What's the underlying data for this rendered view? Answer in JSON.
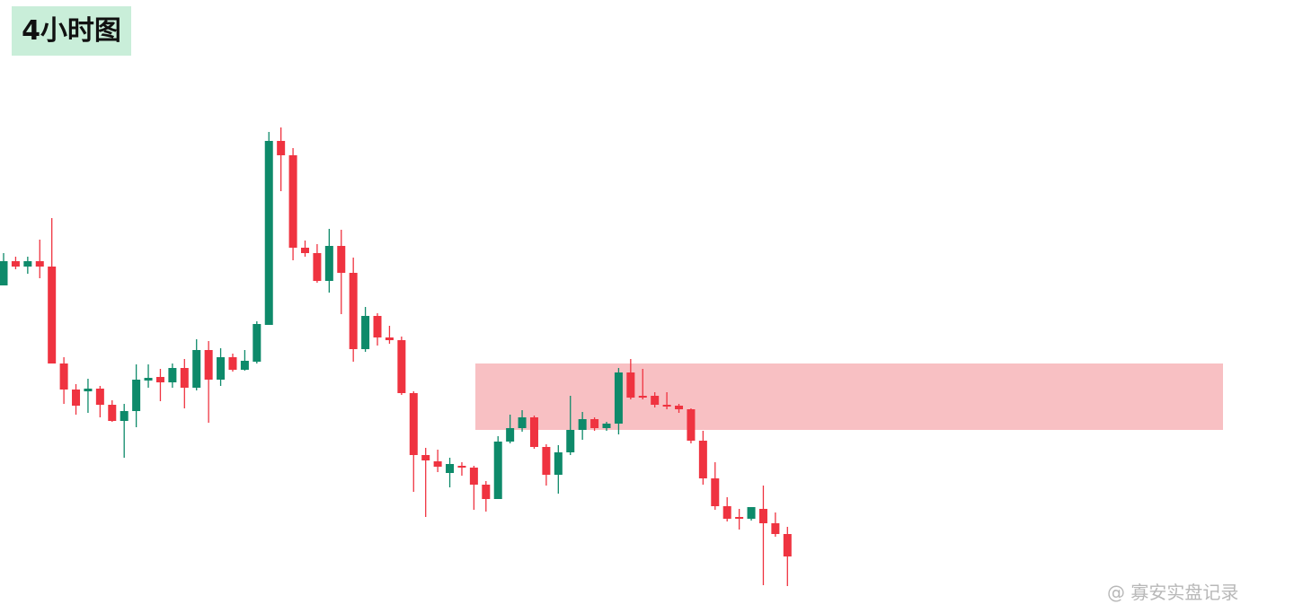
{
  "chart_data": {
    "type": "candlestick",
    "title": "4小时图",
    "watermark": "@ 寡安实盘记录",
    "ylim": [
      0,
      683
    ],
    "up_color": "#0e8a6a",
    "down_color": "#ef3340",
    "open": [
      365,
      392,
      386,
      392,
      386,
      278,
      249,
      247,
      250,
      232,
      214,
      225,
      259,
      263,
      257,
      273,
      251,
      293,
      260,
      285,
      271,
      280,
      321,
      526,
      510,
      407,
      401,
      370,
      409,
      379,
      294,
      331,
      307,
      304,
      245,
      176,
      169,
      156,
      164,
      162,
      143,
      127,
      191,
      206,
      218,
      185,
      154,
      179,
      204,
      216,
      206,
      211,
      268,
      242,
      242,
      232,
      231,
      227,
      192,
      150,
      119,
      107,
      105,
      116,
      100,
      88
    ],
    "high": [
      401,
      397,
      397,
      416,
      440,
      285,
      255,
      261,
      253,
      237,
      233,
      277,
      277,
      272,
      278,
      283,
      305,
      303,
      295,
      289,
      293,
      325,
      536,
      541,
      518,
      415,
      411,
      428,
      427,
      396,
      341,
      334,
      320,
      308,
      247,
      184,
      182,
      173,
      168,
      164,
      147,
      197,
      221,
      226,
      220,
      188,
      187,
      242,
      224,
      218,
      213,
      273,
      283,
      272,
      246,
      246,
      233,
      228,
      203,
      168,
      129,
      116,
      118,
      142,
      112,
      96
    ],
    "low": [
      365,
      383,
      378,
      373,
      278,
      233,
      221,
      223,
      218,
      213,
      173,
      207,
      251,
      236,
      251,
      228,
      248,
      212,
      253,
      269,
      270,
      278,
      321,
      470,
      393,
      397,
      368,
      357,
      333,
      280,
      291,
      298,
      300,
      243,
      135,
      107,
      157,
      140,
      153,
      115,
      113,
      127,
      189,
      202,
      183,
      142,
      133,
      176,
      193,
      203,
      203,
      199,
      238,
      238,
      229,
      227,
      223,
      189,
      143,
      115,
      102,
      93,
      103,
      31,
      85,
      30
    ],
    "close": [
      392,
      386,
      392,
      386,
      278,
      249,
      231,
      250,
      232,
      214,
      225,
      260,
      262,
      257,
      273,
      251,
      293,
      260,
      285,
      271,
      281,
      322,
      526,
      510,
      407,
      401,
      370,
      409,
      379,
      294,
      331,
      307,
      304,
      245,
      176,
      170,
      163,
      166,
      162,
      143,
      127,
      191,
      206,
      218,
      185,
      154,
      179,
      204,
      216,
      206,
      211,
      268,
      240,
      240,
      232,
      230,
      227,
      192,
      150,
      119,
      105,
      105,
      118,
      100,
      88,
      63
    ],
    "zone": {
      "low": 204,
      "high": 278,
      "color": "#f7b5b8"
    }
  }
}
